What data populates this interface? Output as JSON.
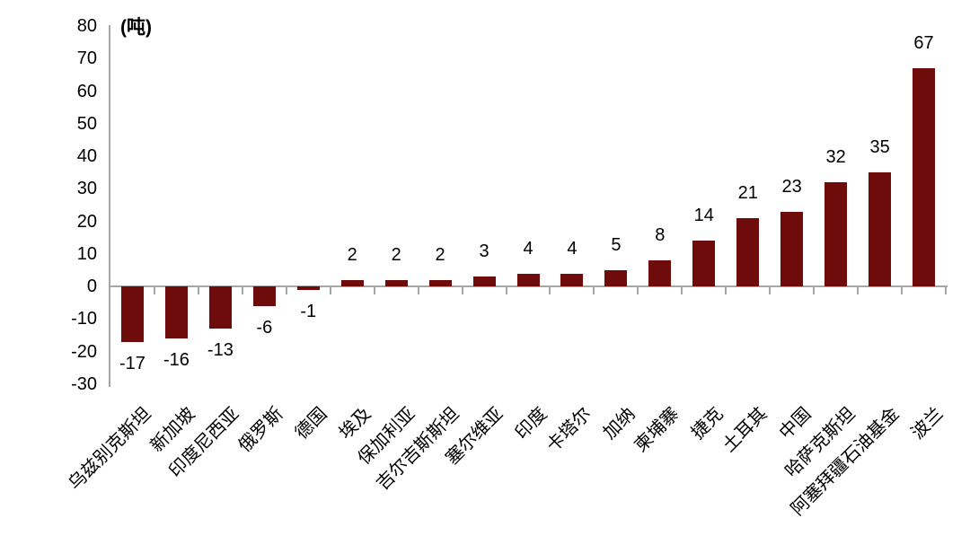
{
  "chart_data": {
    "type": "bar",
    "title": "",
    "unit_label": "(吨)",
    "categories": [
      "乌兹别克斯坦",
      "新加坡",
      "印度尼西亚",
      "俄罗斯",
      "德国",
      "埃及",
      "保加利亚",
      "吉尔吉斯斯坦",
      "塞尔维亚",
      "印度",
      "卡塔尔",
      "加纳",
      "柬埔寨",
      "捷克",
      "土耳其",
      "中国",
      "哈萨克斯坦",
      "阿塞拜疆石油基金",
      "波兰"
    ],
    "values": [
      -17,
      -16,
      -13,
      -6,
      -1,
      2,
      2,
      2,
      3,
      4,
      4,
      5,
      8,
      14,
      21,
      23,
      32,
      35,
      67
    ],
    "yticks": [
      80,
      70,
      60,
      50,
      40,
      30,
      20,
      10,
      0,
      -10,
      -20,
      -30
    ],
    "ylim": [
      -30,
      80
    ],
    "xlabel": "",
    "ylabel": "",
    "grid": false,
    "legend": "none",
    "data_labels": "outside-end",
    "x_label_rotation_deg": -45,
    "bar_color": "#6e0b0b",
    "axis_color": "#a6a6a6",
    "text_color": "#000000",
    "background_color": "#ffffff"
  }
}
